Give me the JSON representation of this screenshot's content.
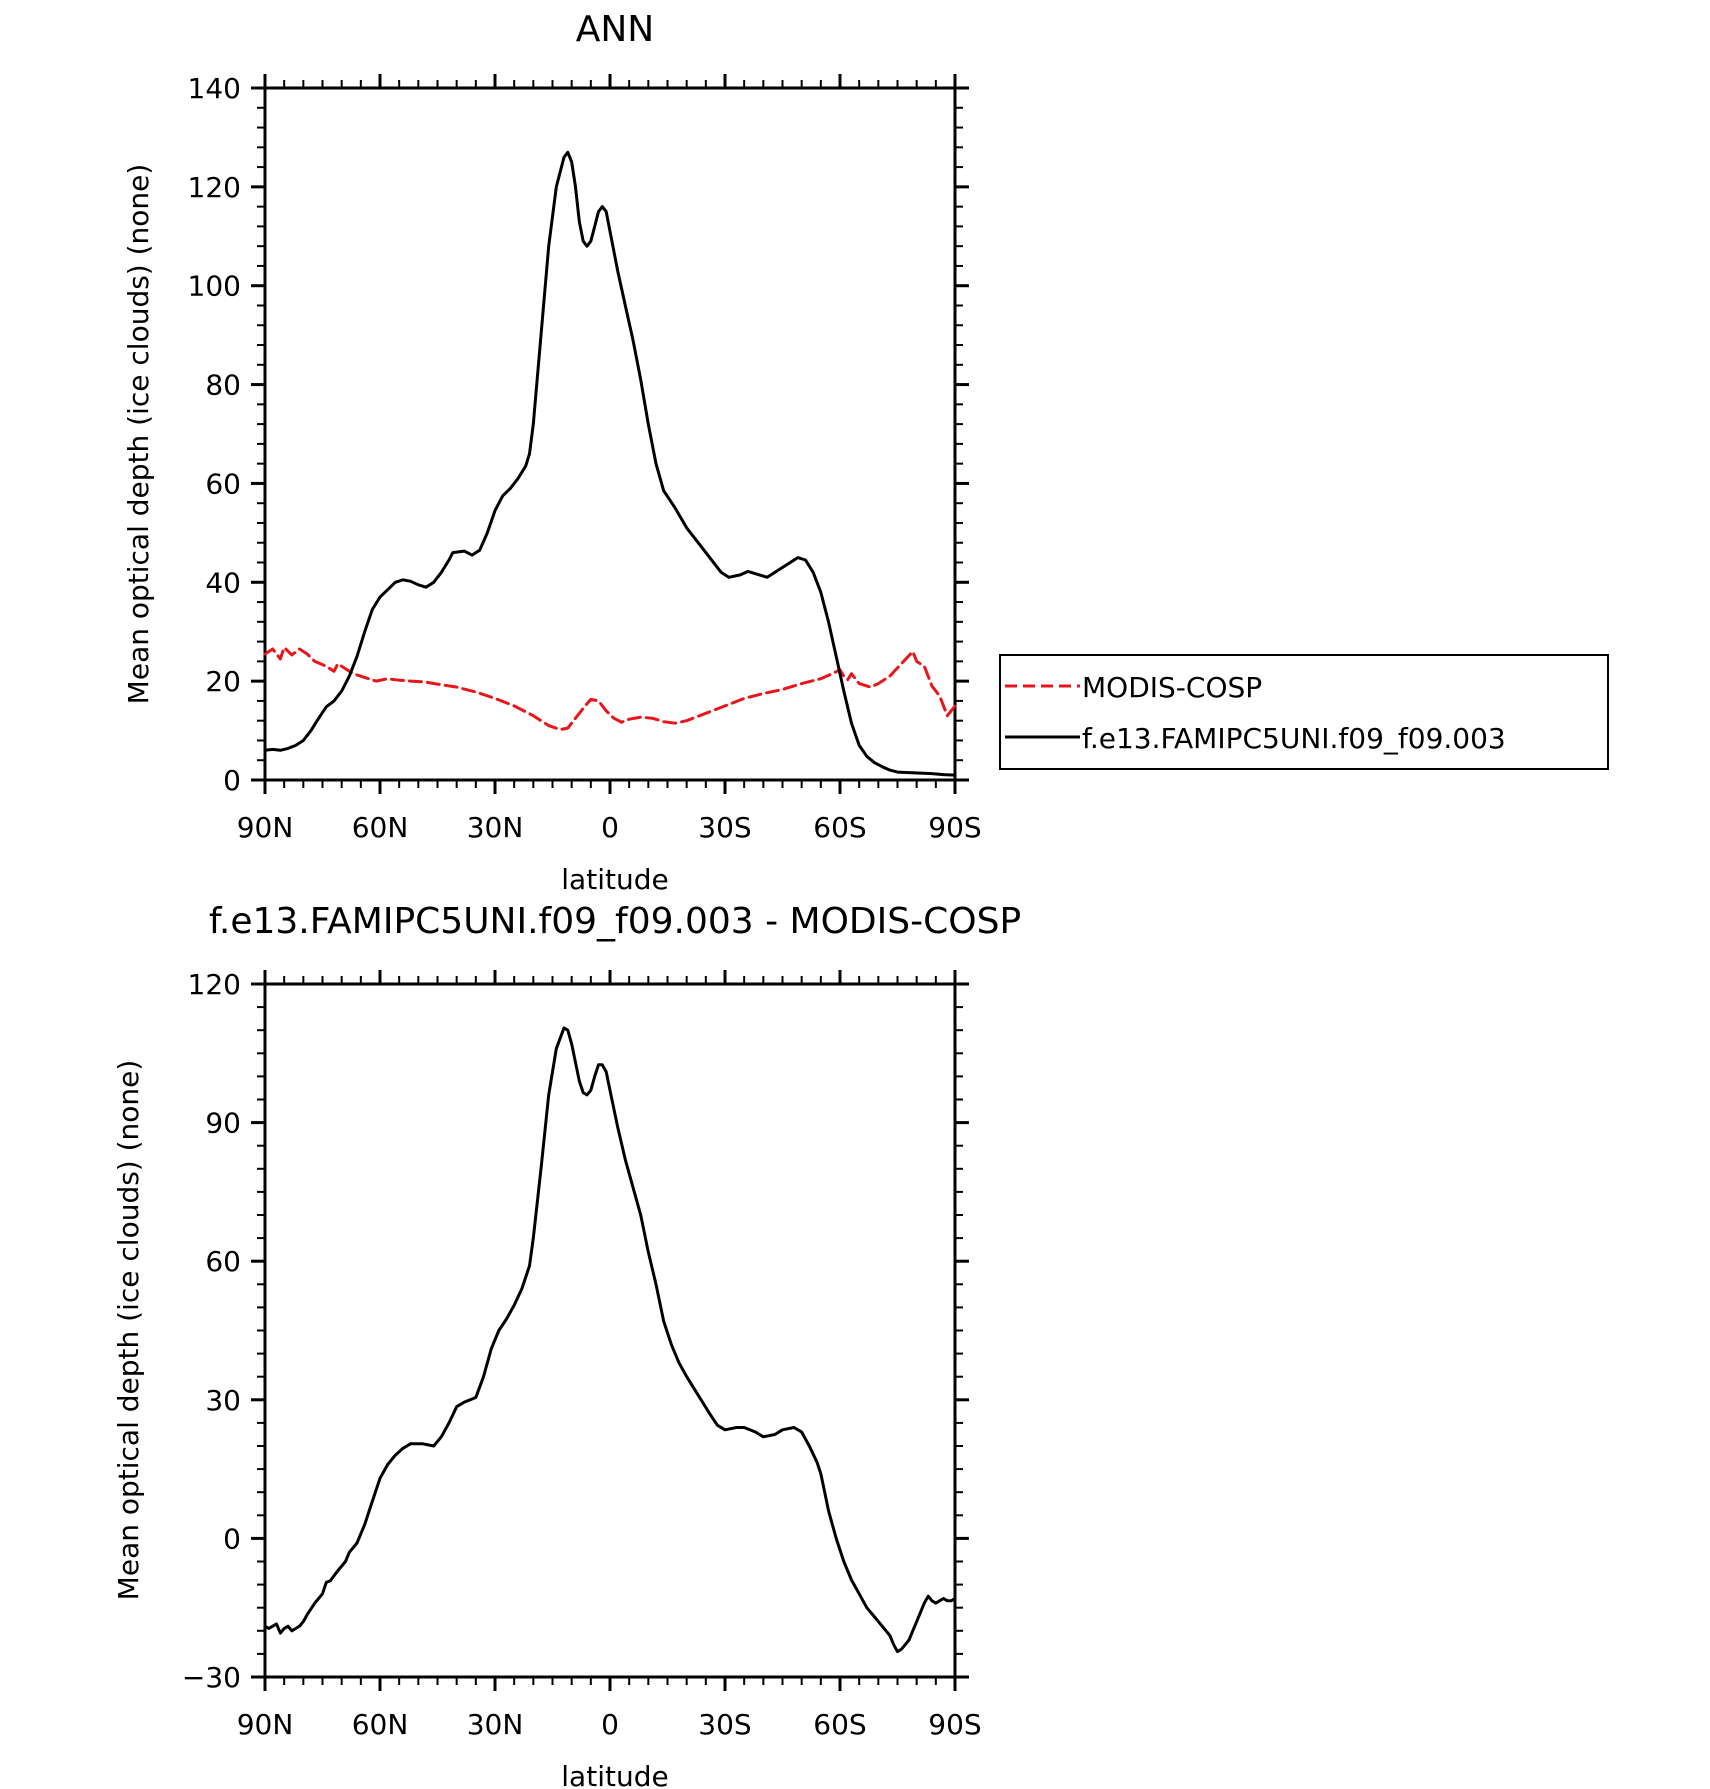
{
  "chart_data": [
    {
      "type": "line",
      "title": "ANN",
      "xlabel": "latitude",
      "ylabel": "Mean optical depth (ice clouds) (none)",
      "xlim": [
        90,
        -90
      ],
      "ylim": [
        0,
        140
      ],
      "x_ticks": [
        {
          "value": 90,
          "label": "90N"
        },
        {
          "value": 60,
          "label": "60N"
        },
        {
          "value": 30,
          "label": "30N"
        },
        {
          "value": 0,
          "label": "0"
        },
        {
          "value": -30,
          "label": "30S"
        },
        {
          "value": -60,
          "label": "60S"
        },
        {
          "value": -90,
          "label": "90S"
        }
      ],
      "y_ticks": [
        0,
        20,
        40,
        60,
        80,
        100,
        120,
        140
      ],
      "legend_position": "right",
      "series": [
        {
          "name": "MODIS-COSP",
          "color": "#e8151b",
          "dash": "dashed",
          "points": [
            [
              90,
              25.5
            ],
            [
              88,
              26.5
            ],
            [
              86,
              24.5
            ],
            [
              85,
              26.8
            ],
            [
              83,
              25.3
            ],
            [
              81,
              26.5
            ],
            [
              79,
              25.5
            ],
            [
              77,
              24
            ],
            [
              74,
              23
            ],
            [
              72,
              22
            ],
            [
              71,
              23.5
            ],
            [
              69,
              22.5
            ],
            [
              67,
              21.5
            ],
            [
              65,
              21
            ],
            [
              63,
              20.5
            ],
            [
              61,
              20
            ],
            [
              58,
              20.5
            ],
            [
              55,
              20.2
            ],
            [
              52,
              20
            ],
            [
              48,
              19.8
            ],
            [
              45,
              19.4
            ],
            [
              40,
              18.8
            ],
            [
              35,
              17.8
            ],
            [
              30,
              16.5
            ],
            [
              25,
              15
            ],
            [
              20,
              13
            ],
            [
              16,
              11
            ],
            [
              13,
              10.2
            ],
            [
              11,
              10.5
            ],
            [
              9,
              12.5
            ],
            [
              7,
              14.5
            ],
            [
              5,
              16.3
            ],
            [
              3,
              16
            ],
            [
              1,
              14
            ],
            [
              -1,
              12.5
            ],
            [
              -3,
              11.7
            ],
            [
              -5,
              12.3
            ],
            [
              -8,
              12.7
            ],
            [
              -11,
              12.5
            ],
            [
              -14,
              11.8
            ],
            [
              -17,
              11.5
            ],
            [
              -20,
              12
            ],
            [
              -25,
              13.5
            ],
            [
              -30,
              15
            ],
            [
              -35,
              16.5
            ],
            [
              -40,
              17.5
            ],
            [
              -45,
              18.3
            ],
            [
              -50,
              19.5
            ],
            [
              -55,
              20.5
            ],
            [
              -58,
              21.5
            ],
            [
              -60,
              22.3
            ],
            [
              -61,
              21
            ],
            [
              -62,
              20.3
            ],
            [
              -63,
              21.5
            ],
            [
              -65,
              19.5
            ],
            [
              -68,
              18.8
            ],
            [
              -70,
              19.5
            ],
            [
              -73,
              21
            ],
            [
              -76,
              23.5
            ],
            [
              -79,
              26
            ],
            [
              -80,
              24
            ],
            [
              -82,
              23
            ],
            [
              -84,
              19
            ],
            [
              -86,
              17
            ],
            [
              -87,
              15
            ],
            [
              -88,
              13
            ],
            [
              -89,
              14
            ],
            [
              -90,
              15
            ]
          ]
        },
        {
          "name": "f.e13.FAMIPC5UNI.f09_f09.003",
          "color": "#000000",
          "dash": "solid",
          "points": [
            [
              90,
              6
            ],
            [
              88,
              6.2
            ],
            [
              86,
              6
            ],
            [
              84,
              6.4
            ],
            [
              82,
              7
            ],
            [
              80,
              8
            ],
            [
              78,
              10
            ],
            [
              76,
              12.5
            ],
            [
              74,
              14.8
            ],
            [
              72,
              16
            ],
            [
              70,
              18
            ],
            [
              68,
              21
            ],
            [
              66,
              25
            ],
            [
              64,
              30
            ],
            [
              62,
              34.5
            ],
            [
              60,
              37
            ],
            [
              58,
              38.5
            ],
            [
              56,
              40
            ],
            [
              54,
              40.5
            ],
            [
              52,
              40.2
            ],
            [
              50,
              39.5
            ],
            [
              48,
              39
            ],
            [
              46,
              40
            ],
            [
              44,
              42
            ],
            [
              42,
              44.5
            ],
            [
              41,
              46
            ],
            [
              38,
              46.3
            ],
            [
              36,
              45.5
            ],
            [
              34,
              46.5
            ],
            [
              32,
              50
            ],
            [
              30,
              54.5
            ],
            [
              28,
              57.5
            ],
            [
              26,
              59
            ],
            [
              24,
              61
            ],
            [
              22,
              63.5
            ],
            [
              21,
              66
            ],
            [
              20,
              72
            ],
            [
              18,
              90
            ],
            [
              16,
              108
            ],
            [
              14,
              120
            ],
            [
              12,
              126
            ],
            [
              11,
              127
            ],
            [
              10,
              125
            ],
            [
              9,
              120
            ],
            [
              8,
              113
            ],
            [
              7,
              109
            ],
            [
              6,
              108
            ],
            [
              5,
              109
            ],
            [
              4,
              112
            ],
            [
              3,
              115
            ],
            [
              2,
              116
            ],
            [
              1,
              115
            ],
            [
              0,
              111
            ],
            [
              -2,
              103
            ],
            [
              -4,
              96
            ],
            [
              -6,
              89
            ],
            [
              -8,
              81
            ],
            [
              -10,
              72
            ],
            [
              -12,
              64
            ],
            [
              -14,
              58.5
            ],
            [
              -17,
              55
            ],
            [
              -20,
              51
            ],
            [
              -23,
              48
            ],
            [
              -26,
              45
            ],
            [
              -29,
              42
            ],
            [
              -31,
              41
            ],
            [
              -34,
              41.5
            ],
            [
              -36,
              42.2
            ],
            [
              -39,
              41.5
            ],
            [
              -41,
              41
            ],
            [
              -44,
              42.5
            ],
            [
              -47,
              44
            ],
            [
              -49,
              45
            ],
            [
              -51,
              44.5
            ],
            [
              -53,
              42
            ],
            [
              -55,
              38
            ],
            [
              -57,
              32
            ],
            [
              -59,
              25
            ],
            [
              -61,
              18
            ],
            [
              -63,
              11.5
            ],
            [
              -65,
              7
            ],
            [
              -67,
              4.8
            ],
            [
              -69,
              3.5
            ],
            [
              -71,
              2.7
            ],
            [
              -73,
              2
            ],
            [
              -75,
              1.6
            ],
            [
              -78,
              1.5
            ],
            [
              -81,
              1.4
            ],
            [
              -84,
              1.3
            ],
            [
              -87,
              1.1
            ],
            [
              -90,
              1
            ]
          ]
        }
      ]
    },
    {
      "type": "line",
      "title": "f.e13.FAMIPC5UNI.f09_f09.003 - MODIS-COSP",
      "xlabel": "latitude",
      "ylabel": "Mean optical depth (ice clouds) (none)",
      "xlim": [
        90,
        -90
      ],
      "ylim": [
        -30,
        120
      ],
      "x_ticks": [
        {
          "value": 90,
          "label": "90N"
        },
        {
          "value": 60,
          "label": "60N"
        },
        {
          "value": 30,
          "label": "30N"
        },
        {
          "value": 0,
          "label": "0"
        },
        {
          "value": -30,
          "label": "30S"
        },
        {
          "value": -60,
          "label": "60S"
        },
        {
          "value": -90,
          "label": "90S"
        }
      ],
      "y_ticks": [
        -30,
        0,
        30,
        60,
        90,
        120
      ],
      "y_tick_labels": [
        "−30",
        "0",
        "30",
        "60",
        "90",
        "120"
      ],
      "series": [
        {
          "color": "#000000",
          "dash": "solid",
          "points": [
            [
              90,
              -19
            ],
            [
              89,
              -19.5
            ],
            [
              88,
              -19
            ],
            [
              87,
              -18.5
            ],
            [
              86,
              -20.5
            ],
            [
              85,
              -19.5
            ],
            [
              84,
              -19
            ],
            [
              83,
              -20
            ],
            [
              82,
              -19.5
            ],
            [
              81,
              -19
            ],
            [
              80,
              -18
            ],
            [
              79,
              -16.5
            ],
            [
              77,
              -14
            ],
            [
              75,
              -12
            ],
            [
              74,
              -9.5
            ],
            [
              73,
              -9.2
            ],
            [
              71,
              -7
            ],
            [
              69,
              -5
            ],
            [
              68,
              -3
            ],
            [
              66,
              -1
            ],
            [
              64,
              3
            ],
            [
              62,
              8
            ],
            [
              60,
              13
            ],
            [
              58,
              16
            ],
            [
              56,
              18
            ],
            [
              54,
              19.5
            ],
            [
              52,
              20.5
            ],
            [
              49,
              20.5
            ],
            [
              46,
              20
            ],
            [
              44,
              22
            ],
            [
              42,
              25
            ],
            [
              40,
              28.5
            ],
            [
              38,
              29.5
            ],
            [
              35,
              30.5
            ],
            [
              33,
              35
            ],
            [
              31,
              41
            ],
            [
              29,
              45
            ],
            [
              27,
              47.5
            ],
            [
              25,
              50.5
            ],
            [
              23,
              54
            ],
            [
              21,
              59
            ],
            [
              20,
              65
            ],
            [
              18,
              80
            ],
            [
              16,
              96
            ],
            [
              14,
              106
            ],
            [
              12,
              110.5
            ],
            [
              11,
              110
            ],
            [
              10,
              107
            ],
            [
              9,
              103
            ],
            [
              8,
              99
            ],
            [
              7,
              96.5
            ],
            [
              6,
              96
            ],
            [
              5,
              97
            ],
            [
              4,
              100
            ],
            [
              3,
              102.5
            ],
            [
              2,
              102.5
            ],
            [
              1,
              101
            ],
            [
              0,
              97
            ],
            [
              -2,
              89
            ],
            [
              -4,
              82
            ],
            [
              -6,
              76
            ],
            [
              -8,
              70
            ],
            [
              -10,
              62
            ],
            [
              -12,
              55
            ],
            [
              -14,
              47
            ],
            [
              -16,
              42
            ],
            [
              -18,
              38
            ],
            [
              -20,
              35
            ],
            [
              -23,
              31
            ],
            [
              -26,
              27
            ],
            [
              -28,
              24.5
            ],
            [
              -30,
              23.5
            ],
            [
              -33,
              24
            ],
            [
              -35,
              24
            ],
            [
              -38,
              23
            ],
            [
              -40,
              22
            ],
            [
              -43,
              22.5
            ],
            [
              -45,
              23.5
            ],
            [
              -48,
              24
            ],
            [
              -50,
              23
            ],
            [
              -52,
              20
            ],
            [
              -54,
              16.5
            ],
            [
              -55,
              14
            ],
            [
              -56,
              10
            ],
            [
              -57,
              6
            ],
            [
              -59,
              0
            ],
            [
              -61,
              -5
            ],
            [
              -63,
              -9
            ],
            [
              -65,
              -12
            ],
            [
              -67,
              -15
            ],
            [
              -69,
              -17
            ],
            [
              -71,
              -19
            ],
            [
              -73,
              -21
            ],
            [
              -74,
              -23
            ],
            [
              -75,
              -24.5
            ],
            [
              -76,
              -24
            ],
            [
              -77,
              -23
            ],
            [
              -78,
              -22
            ],
            [
              -79,
              -20
            ],
            [
              -80,
              -18
            ],
            [
              -81,
              -16
            ],
            [
              -82,
              -14
            ],
            [
              -83,
              -12.5
            ],
            [
              -84,
              -13.5
            ],
            [
              -85,
              -14
            ],
            [
              -86,
              -13.5
            ],
            [
              -87,
              -13
            ],
            [
              -88,
              -13.5
            ],
            [
              -89,
              -13.5
            ],
            [
              -90,
              -13
            ]
          ]
        }
      ]
    }
  ]
}
